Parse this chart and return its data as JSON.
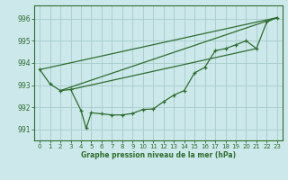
{
  "background_color": "#cce8ea",
  "grid_color": "#aacfcf",
  "line_color": "#2d6e2d",
  "xlabel": "Graphe pression niveau de la mer (hPa)",
  "ylim": [
    990.5,
    996.6
  ],
  "xlim": [
    -0.5,
    23.5
  ],
  "yticks": [
    991,
    992,
    993,
    994,
    995,
    996
  ],
  "xticks": [
    0,
    1,
    2,
    3,
    4,
    5,
    6,
    7,
    8,
    9,
    10,
    11,
    12,
    13,
    14,
    15,
    16,
    17,
    18,
    19,
    20,
    21,
    22,
    23
  ],
  "series_main": {
    "x": [
      0,
      1,
      2,
      3,
      4,
      4.5,
      5,
      6,
      7,
      8,
      9,
      10,
      11,
      12,
      13,
      14,
      15,
      16,
      17,
      18,
      19,
      20,
      21,
      22,
      23
    ],
    "y": [
      993.7,
      993.05,
      992.75,
      992.8,
      991.85,
      991.05,
      991.75,
      991.7,
      991.65,
      991.65,
      991.72,
      991.9,
      991.92,
      992.25,
      992.55,
      992.75,
      993.55,
      993.8,
      994.55,
      994.65,
      994.82,
      995.0,
      994.65,
      995.85,
      996.05
    ]
  },
  "ref_line1": {
    "x": [
      0,
      23
    ],
    "y": [
      993.7,
      996.05
    ]
  },
  "ref_line2": {
    "x": [
      2,
      23
    ],
    "y": [
      992.75,
      996.05
    ]
  },
  "ref_line3": {
    "x": [
      3,
      21
    ],
    "y": [
      992.8,
      994.65
    ]
  }
}
